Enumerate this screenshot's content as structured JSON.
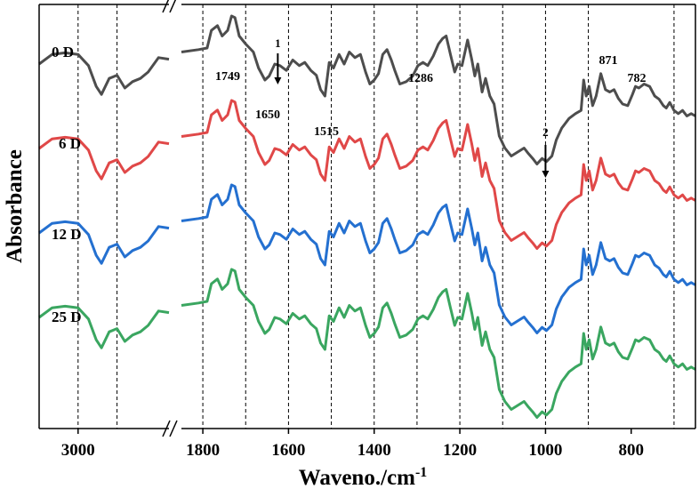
{
  "chart_data": {
    "type": "line",
    "xlabel": "Waveno./cm",
    "xlabel_sup": "-1",
    "ylabel": "Absorbance",
    "x_axis": "reversed, broken between 2500 and 1850",
    "xlim_left_panel": [
      3150,
      2650
    ],
    "xlim_right_panel": [
      1850,
      650
    ],
    "xticks_left": [
      3000
    ],
    "xticks_right": [
      1800,
      1600,
      1400,
      1200,
      1000,
      800
    ],
    "xtick_labels_left": [
      "3000"
    ],
    "xtick_labels_right": [
      "1800",
      "1600",
      "1400",
      "1200",
      "1000",
      "800"
    ],
    "gridlines_x": [
      3000,
      2850,
      1800,
      1700,
      1600,
      1500,
      1400,
      1300,
      1200,
      1100,
      1000,
      900,
      700
    ],
    "grid": "vertical dashed lines",
    "peak_labels": [
      {
        "text": "1749",
        "x": 1749
      },
      {
        "text": "1650",
        "x": 1650
      },
      {
        "text": "1515",
        "x": 1515
      },
      {
        "text": "1286",
        "x": 1286
      },
      {
        "text": "871",
        "x": 871
      },
      {
        "text": "782",
        "x": 782
      }
    ],
    "arrows": [
      {
        "text": "1",
        "x": 1625
      },
      {
        "text": "2",
        "x": 1000
      }
    ],
    "series": [
      {
        "name": "0 D",
        "color": "#4d4d4d",
        "offset": 0
      },
      {
        "name": "6 D",
        "color": "#e04848",
        "offset": 95
      },
      {
        "name": "12 D",
        "color": "#2470d0",
        "offset": 190
      },
      {
        "name": "25 D",
        "color": "#3aa660",
        "offset": 285
      }
    ],
    "left_panel_points": [
      [
        3150,
        20
      ],
      [
        3100,
        8
      ],
      [
        3050,
        6
      ],
      [
        3000,
        8
      ],
      [
        2960,
        22
      ],
      [
        2930,
        48
      ],
      [
        2910,
        58
      ],
      [
        2880,
        38
      ],
      [
        2850,
        34
      ],
      [
        2820,
        50
      ],
      [
        2790,
        42
      ],
      [
        2760,
        38
      ],
      [
        2730,
        30
      ],
      [
        2690,
        12
      ],
      [
        2650,
        14
      ]
    ],
    "right_panel_points": [
      [
        1850,
        45
      ],
      [
        1810,
        42
      ],
      [
        1790,
        40
      ],
      [
        1780,
        18
      ],
      [
        1766,
        12
      ],
      [
        1755,
        25
      ],
      [
        1742,
        18
      ],
      [
        1733,
        0
      ],
      [
        1725,
        2
      ],
      [
        1715,
        25
      ],
      [
        1700,
        35
      ],
      [
        1682,
        45
      ],
      [
        1670,
        65
      ],
      [
        1655,
        80
      ],
      [
        1645,
        75
      ],
      [
        1632,
        60
      ],
      [
        1620,
        62
      ],
      [
        1605,
        68
      ],
      [
        1590,
        55
      ],
      [
        1575,
        62
      ],
      [
        1562,
        58
      ],
      [
        1548,
        68
      ],
      [
        1535,
        74
      ],
      [
        1525,
        92
      ],
      [
        1515,
        100
      ],
      [
        1505,
        58
      ],
      [
        1495,
        65
      ],
      [
        1482,
        48
      ],
      [
        1470,
        60
      ],
      [
        1458,
        45
      ],
      [
        1445,
        52
      ],
      [
        1432,
        48
      ],
      [
        1420,
        70
      ],
      [
        1410,
        85
      ],
      [
        1400,
        80
      ],
      [
        1390,
        72
      ],
      [
        1380,
        48
      ],
      [
        1370,
        42
      ],
      [
        1360,
        55
      ],
      [
        1352,
        68
      ],
      [
        1340,
        85
      ],
      [
        1325,
        82
      ],
      [
        1310,
        75
      ],
      [
        1298,
        62
      ],
      [
        1286,
        58
      ],
      [
        1275,
        62
      ],
      [
        1262,
        50
      ],
      [
        1250,
        35
      ],
      [
        1240,
        28
      ],
      [
        1232,
        25
      ],
      [
        1222,
        48
      ],
      [
        1212,
        70
      ],
      [
        1205,
        60
      ],
      [
        1195,
        62
      ],
      [
        1182,
        30
      ],
      [
        1172,
        55
      ],
      [
        1165,
        75
      ],
      [
        1158,
        60
      ],
      [
        1148,
        95
      ],
      [
        1140,
        78
      ],
      [
        1130,
        100
      ],
      [
        1120,
        110
      ],
      [
        1108,
        150
      ],
      [
        1095,
        165
      ],
      [
        1080,
        175
      ],
      [
        1065,
        170
      ],
      [
        1050,
        165
      ],
      [
        1040,
        172
      ],
      [
        1030,
        178
      ],
      [
        1020,
        185
      ],
      [
        1008,
        178
      ],
      [
        998,
        182
      ],
      [
        985,
        175
      ],
      [
        975,
        155
      ],
      [
        962,
        140
      ],
      [
        945,
        128
      ],
      [
        930,
        122
      ],
      [
        917,
        118
      ],
      [
        911,
        80
      ],
      [
        905,
        100
      ],
      [
        898,
        88
      ],
      [
        890,
        112
      ],
      [
        882,
        100
      ],
      [
        871,
        72
      ],
      [
        860,
        92
      ],
      [
        850,
        95
      ],
      [
        840,
        92
      ],
      [
        830,
        103
      ],
      [
        820,
        110
      ],
      [
        808,
        112
      ],
      [
        797,
        98
      ],
      [
        790,
        88
      ],
      [
        782,
        90
      ],
      [
        770,
        85
      ],
      [
        757,
        88
      ],
      [
        745,
        100
      ],
      [
        735,
        104
      ],
      [
        725,
        112
      ],
      [
        718,
        115
      ],
      [
        710,
        108
      ],
      [
        700,
        118
      ],
      [
        690,
        122
      ],
      [
        680,
        118
      ],
      [
        670,
        125
      ],
      [
        660,
        122
      ],
      [
        650,
        125
      ]
    ]
  }
}
